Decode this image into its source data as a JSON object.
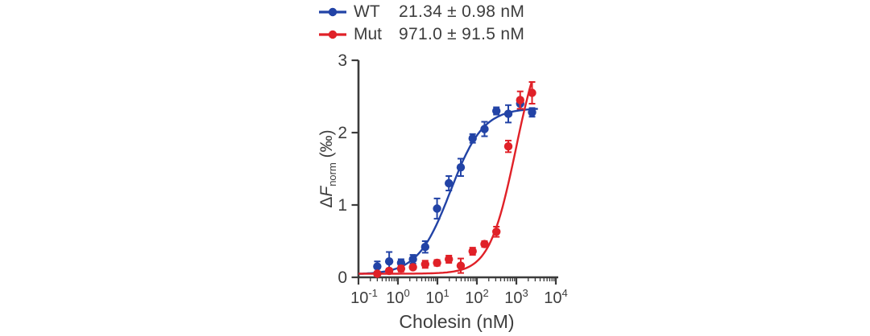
{
  "figure": {
    "legend": [
      {
        "series": "WT",
        "value": "21.34 ± 0.98 nM",
        "color": "#2243a6"
      },
      {
        "series": "Mut",
        "value": "971.0 ± 91.5 nM",
        "color": "#e02128"
      }
    ],
    "y_axis": {
      "label_delta": "Δ",
      "label_f": "F",
      "label_sub": "norm",
      "label_unit": " (‰)",
      "ticks": [
        0,
        1,
        2,
        3
      ]
    },
    "x_axis": {
      "label": "Cholesin (nM)",
      "base": "10",
      "tick_exponents": [
        -1,
        0,
        1,
        2,
        3,
        4
      ]
    },
    "axis_color": "#3b3b3b",
    "text_color": "#3d3d3d"
  },
  "chart_data": {
    "type": "scatter",
    "title": "",
    "xlabel": "Cholesin (nM)",
    "ylabel": "ΔF_norm (‰)",
    "x_scale": "log",
    "x_range": [
      0.1,
      10000
    ],
    "ylim": [
      0,
      3
    ],
    "grid": false,
    "legend_position": "top",
    "concentrations_nM": [
      0.3,
      0.6,
      1.2,
      2.4,
      4.9,
      9.8,
      19.5,
      39,
      78,
      156,
      312,
      625,
      1250,
      2500
    ],
    "series": [
      {
        "name": "WT",
        "kd_label": "21.34 ± 0.98 nM",
        "color": "#2243a6",
        "values": [
          0.15,
          0.22,
          0.2,
          0.25,
          0.42,
          0.95,
          1.3,
          1.52,
          1.92,
          2.05,
          2.3,
          2.26,
          2.4,
          2.28
        ],
        "errors": [
          0.07,
          0.13,
          0.05,
          0.06,
          0.08,
          0.14,
          0.1,
          0.12,
          0.06,
          0.1,
          0.05,
          0.12,
          0.08,
          0.06
        ],
        "fit": {
          "bottom": 0.04,
          "top": 2.34,
          "ec50": 21.34,
          "hill": 1.05,
          "xmax": 3500
        }
      },
      {
        "name": "Mut",
        "kd_label": "971.0 ± 91.5 nM",
        "color": "#e02128",
        "values": [
          0.05,
          0.09,
          0.12,
          0.14,
          0.18,
          0.2,
          0.25,
          0.16,
          0.36,
          0.46,
          0.63,
          1.81,
          2.45,
          2.55
        ],
        "errors": [
          0.03,
          0.03,
          0.04,
          0.03,
          0.05,
          0.04,
          0.05,
          0.1,
          0.05,
          0.04,
          0.07,
          0.08,
          0.12,
          0.15
        ],
        "fit": {
          "bottom": 0.05,
          "top": 3.5,
          "ec50": 971.0,
          "hill": 1.3,
          "xmax": 2400
        }
      }
    ]
  }
}
